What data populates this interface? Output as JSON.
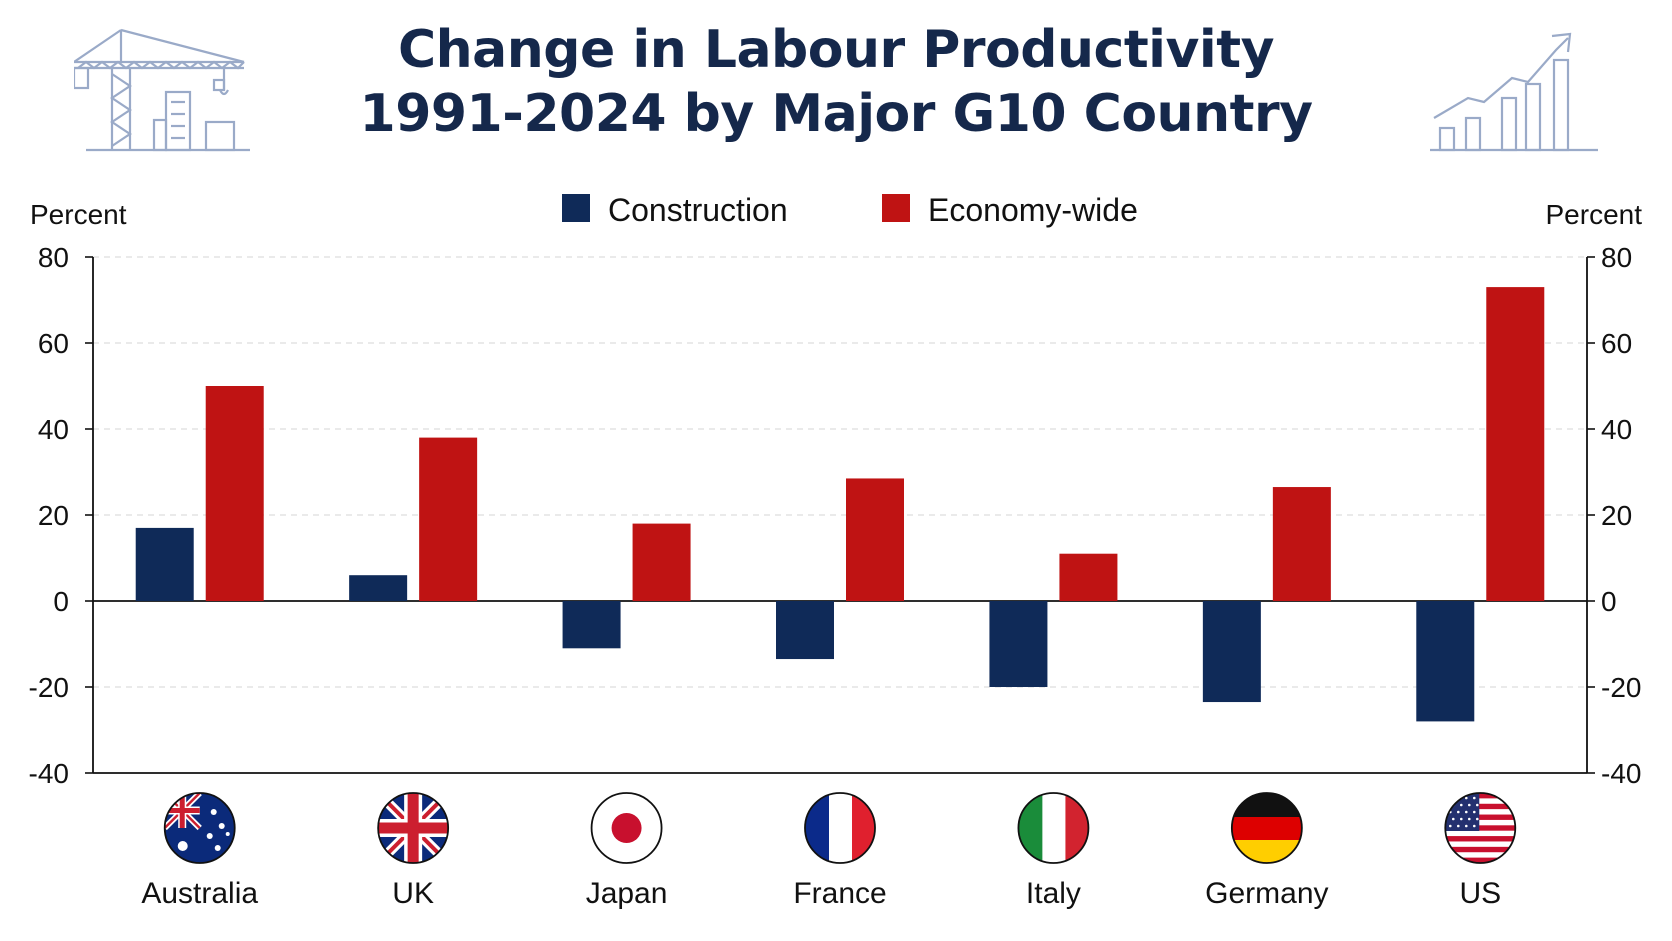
{
  "title_lines": [
    "Change in Labour Productivity",
    "1991-2024 by Major G10 Country"
  ],
  "colors": {
    "title": "#15284b",
    "construction": "#0f2a58",
    "economy_wide": "#bf1313",
    "axis": "#111111",
    "grid": "#dddddd",
    "decoration": "#9aaac8"
  },
  "decorations": {
    "left": "construction-crane-icon",
    "right": "growth-chart-icon"
  },
  "chart_data": {
    "type": "bar",
    "categories": [
      "Australia",
      "UK",
      "Japan",
      "France",
      "Italy",
      "Germany",
      "US"
    ],
    "flags": [
      "australia-flag-icon",
      "uk-flag-icon",
      "japan-flag-icon",
      "france-flag-icon",
      "italy-flag-icon",
      "germany-flag-icon",
      "us-flag-icon"
    ],
    "series": [
      {
        "name": "Construction",
        "color": "#0f2a58",
        "values": [
          17,
          6,
          -11,
          -13.5,
          -20,
          -23.5,
          -28
        ]
      },
      {
        "name": "Economy-wide",
        "color": "#bf1313",
        "values": [
          50,
          38,
          18,
          28.5,
          11,
          26.5,
          73
        ]
      }
    ],
    "ylabel_left": "Percent",
    "ylabel_right": "Percent",
    "ylim": [
      -40,
      80
    ],
    "yticks": [
      -40,
      -20,
      0,
      20,
      40,
      60,
      80
    ],
    "grid": true,
    "legend_position": "top-center"
  }
}
